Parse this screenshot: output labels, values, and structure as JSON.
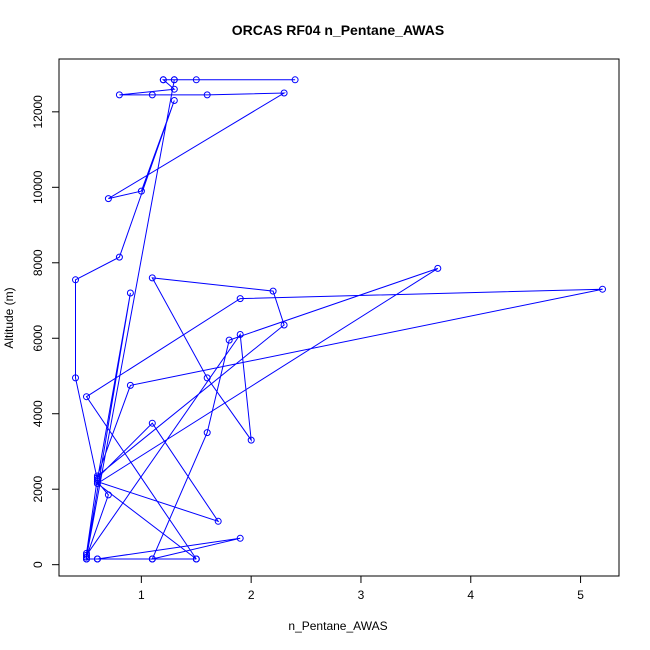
{
  "chart_data": {
    "type": "line",
    "title": "ORCAS RF04 n_Pentane_AWAS",
    "xlabel": "n_Pentane_AWAS",
    "ylabel": "Altitude (m)",
    "xlim": [
      0.25,
      5.35
    ],
    "ylim": [
      -300,
      13400
    ],
    "xticks": [
      1,
      2,
      3,
      4,
      5
    ],
    "yticks": [
      0,
      2000,
      4000,
      6000,
      8000,
      10000,
      12000
    ],
    "grid": false,
    "marker": "open-circle",
    "color": "#0000ff",
    "series": [
      {
        "points": [
          [
            1.5,
            150
          ],
          [
            0.6,
            150
          ],
          [
            0.5,
            150
          ],
          [
            1.1,
            150
          ],
          [
            0.5,
            150
          ],
          [
            0.5,
            300
          ],
          [
            0.6,
            2300
          ],
          [
            1.1,
            3750
          ],
          [
            1.7,
            1150
          ],
          [
            0.6,
            2200
          ],
          [
            0.7,
            1850
          ],
          [
            0.5,
            200
          ],
          [
            1.3,
            12850
          ],
          [
            1.2,
            12850
          ],
          [
            1.5,
            12850
          ],
          [
            2.4,
            12850
          ],
          [
            1.3,
            12850
          ],
          [
            1.2,
            12850
          ],
          [
            1.3,
            12600
          ],
          [
            0.8,
            12450
          ],
          [
            1.1,
            12450
          ],
          [
            1.6,
            12450
          ],
          [
            2.3,
            12500
          ],
          [
            0.7,
            9700
          ],
          [
            1.0,
            9900
          ],
          [
            1.3,
            12300
          ],
          [
            0.8,
            8150
          ],
          [
            0.4,
            7550
          ],
          [
            0.4,
            4950
          ],
          [
            0.6,
            2250
          ],
          [
            0.9,
            7200
          ],
          [
            0.5,
            250
          ],
          [
            1.9,
            6100
          ],
          [
            2.0,
            3300
          ],
          [
            1.6,
            4950
          ],
          [
            1.1,
            7600
          ],
          [
            2.2,
            7250
          ],
          [
            2.3,
            6350
          ],
          [
            0.6,
            2350
          ],
          [
            0.9,
            4750
          ],
          [
            5.2,
            7300
          ],
          [
            1.9,
            7050
          ],
          [
            0.5,
            4450
          ],
          [
            1.5,
            150
          ],
          [
            0.6,
            2150
          ],
          [
            3.7,
            7850
          ],
          [
            1.8,
            5950
          ],
          [
            1.6,
            3500
          ],
          [
            1.1,
            150
          ],
          [
            1.9,
            700
          ],
          [
            0.6,
            150
          ]
        ]
      }
    ]
  }
}
